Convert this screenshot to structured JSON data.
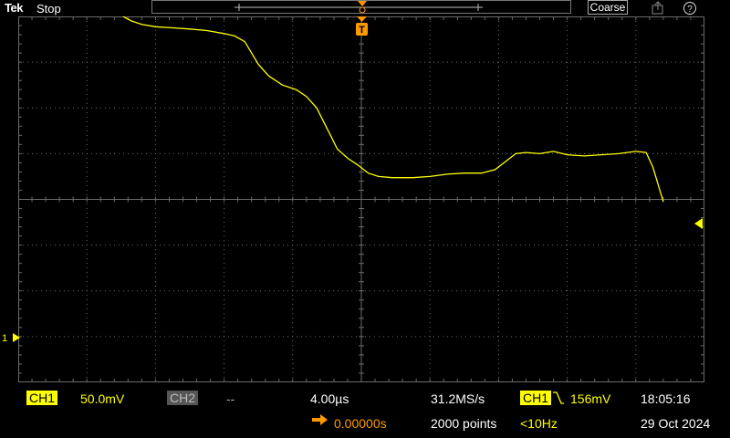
{
  "topbar": {
    "brand": "Tek",
    "state": "Stop",
    "mode": "Coarse"
  },
  "icons": {
    "export": "export-icon",
    "help": "help-icon"
  },
  "screen": {
    "trigger_marker": "T",
    "ch1_marker": "1"
  },
  "colors": {
    "trace": "#ffff00",
    "trigger": "#ff9900",
    "grid": "#6b6b6b",
    "ch2": "#555555"
  },
  "waveform_samples": [
    [
      3.05,
      0.0
    ],
    [
      3.3,
      -0.2
    ],
    [
      3.6,
      -0.35
    ],
    [
      4.0,
      -0.45
    ],
    [
      4.5,
      -0.5
    ],
    [
      5.0,
      -0.55
    ],
    [
      5.5,
      -0.62
    ],
    [
      6.0,
      -0.75
    ],
    [
      6.3,
      -0.85
    ],
    [
      6.6,
      -1.1
    ],
    [
      6.8,
      -1.6
    ],
    [
      7.0,
      -2.1
    ],
    [
      7.3,
      -2.6
    ],
    [
      7.7,
      -3.0
    ],
    [
      8.1,
      -3.2
    ],
    [
      8.4,
      -3.5
    ],
    [
      8.7,
      -4.0
    ],
    [
      8.9,
      -4.6
    ],
    [
      9.1,
      -5.2
    ],
    [
      9.3,
      -5.8
    ],
    [
      9.6,
      -6.2
    ],
    [
      9.9,
      -6.5
    ],
    [
      10.2,
      -6.85
    ],
    [
      10.5,
      -7.0
    ],
    [
      10.9,
      -7.05
    ],
    [
      11.5,
      -7.05
    ],
    [
      12.0,
      -7.0
    ],
    [
      12.5,
      -6.9
    ],
    [
      13.0,
      -6.85
    ],
    [
      13.5,
      -6.85
    ],
    [
      13.9,
      -6.7
    ],
    [
      14.2,
      -6.35
    ],
    [
      14.5,
      -6.0
    ],
    [
      14.8,
      -5.95
    ],
    [
      15.2,
      -6.0
    ],
    [
      15.6,
      -5.9
    ],
    [
      16.0,
      -6.05
    ],
    [
      16.5,
      -6.1
    ],
    [
      17.0,
      -6.05
    ],
    [
      17.5,
      -6.0
    ],
    [
      18.0,
      -5.9
    ],
    [
      18.3,
      -5.95
    ],
    [
      18.5,
      -6.6
    ],
    [
      18.7,
      -7.6
    ],
    [
      18.8,
      -8.1
    ]
  ],
  "bottom": {
    "ch1_label": "CH1",
    "ch1_scale": "50.0mV",
    "ch2_label": "CH2",
    "ch2_scale": "--",
    "timebase": "4.00µs",
    "sample_rate": "31.2MS/s",
    "trig_src": "CH1",
    "trig_level": "156mV",
    "time": "18:05:16",
    "delay": "0.00000s",
    "points": "2000 points",
    "trig_freq": "<10Hz",
    "date": "29 Oct 2024"
  }
}
